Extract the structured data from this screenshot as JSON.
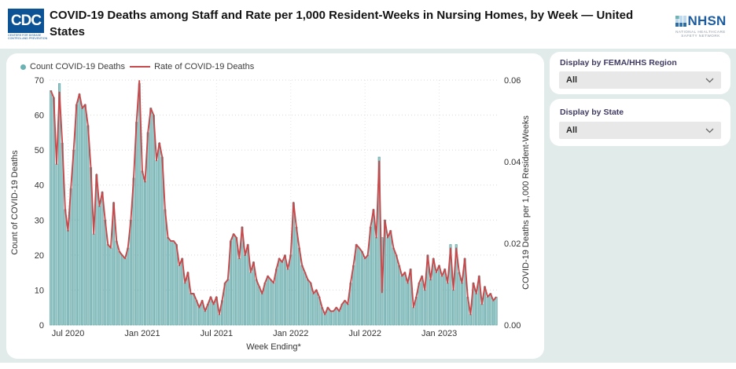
{
  "header": {
    "title": "COVID-19 Deaths among Staff and Rate per 1,000 Resident-Weeks in Nursing Homes, by Week — United States",
    "cdc_logo_text": "CDC",
    "cdc_logo_caption1": "CENTERS FOR DISEASE",
    "cdc_logo_caption2": "CONTROL AND PREVENTION",
    "nhsn_logo_text": "NHSN",
    "nhsn_caption1": "NATIONAL HEALTHCARE",
    "nhsn_caption2": "SAFETY NETWORK"
  },
  "filters": [
    {
      "label": "Display by FEMA/HHS Region",
      "value": "All"
    },
    {
      "label": "Display by State",
      "value": "All"
    }
  ],
  "legend": [
    {
      "label": "Count COVID-19 Deaths",
      "marker": "dot",
      "color": "#6cb2b2"
    },
    {
      "label": "Rate of COVID-19 Deaths",
      "marker": "line",
      "color": "#c64a4c"
    }
  ],
  "colors": {
    "bar_fill": "#9ccaca",
    "bar_stroke": "#5fa5a5",
    "line": "#c64a4c",
    "band_bg": "#e1ebea",
    "grid": "#d9d9d9",
    "filter_label": "#3f3b63"
  },
  "chart_data": {
    "type": "bar+line combo (weekly time series, May 2020 – May 2023)",
    "xlabel": "Week Ending*",
    "x_ticks": [
      {
        "label": "Jul 2020",
        "week": 6
      },
      {
        "label": "Jan 2021",
        "week": 32
      },
      {
        "label": "Jul 2021",
        "week": 58
      },
      {
        "label": "Jan 2022",
        "week": 84
      },
      {
        "label": "Jul 2022",
        "week": 110
      },
      {
        "label": "Jan 2023",
        "week": 136
      }
    ],
    "left_axis": {
      "label": "Count of COVID-19 Deaths",
      "range": [
        0,
        70
      ],
      "ticks": [
        0,
        10,
        20,
        30,
        40,
        50,
        60,
        70
      ]
    },
    "right_axis": {
      "label": "COVID-19 Deaths per 1,000 Resident-Weeks",
      "range": [
        0,
        0.06
      ],
      "ticks": [
        "0.00",
        "0.02",
        "0.04",
        "0.06"
      ]
    },
    "grid": "dotted horizontal at each left tick, dotted vertical at each x tick",
    "legend_position": "top-left",
    "series": [
      {
        "name": "Count COVID-19 Deaths",
        "type": "bar",
        "axis": "left",
        "values": [
          67,
          65,
          46,
          69,
          52,
          33,
          27,
          39,
          50,
          63,
          66,
          62,
          63,
          57,
          45,
          26,
          43,
          34,
          38,
          30,
          23,
          22,
          35,
          24,
          21,
          20,
          19,
          22,
          30,
          42,
          58,
          69,
          44,
          41,
          55,
          62,
          60,
          47,
          52,
          48,
          33,
          25,
          24,
          24,
          23,
          17,
          19,
          12,
          15,
          9,
          9,
          7,
          5,
          7,
          4,
          6,
          8,
          6,
          8,
          3,
          7,
          12,
          13,
          24,
          26,
          25,
          19,
          28,
          20,
          23,
          15,
          18,
          13,
          11,
          9,
          12,
          14,
          13,
          12,
          16,
          19,
          18,
          20,
          16,
          20,
          35,
          28,
          22,
          17,
          15,
          13,
          12,
          9,
          10,
          8,
          5,
          3,
          5,
          4,
          4,
          5,
          4,
          6,
          7,
          6,
          12,
          17,
          23,
          22,
          21,
          19,
          20,
          28,
          33,
          25,
          48,
          25,
          30,
          25,
          27,
          22,
          20,
          17,
          14,
          15,
          12,
          16,
          5,
          8,
          12,
          14,
          10,
          20,
          13,
          19,
          15,
          17,
          14,
          16,
          12,
          23,
          10,
          23,
          15,
          12,
          19,
          8,
          3,
          12,
          9,
          14,
          6,
          11,
          8,
          9,
          7,
          8
        ]
      },
      {
        "name": "Rate of COVID-19 Deaths",
        "type": "line",
        "axis": "right",
        "values": [
          0.0574,
          0.0557,
          0.0394,
          0.057,
          0.0446,
          0.0283,
          0.0231,
          0.0334,
          0.0429,
          0.054,
          0.0566,
          0.0531,
          0.054,
          0.0489,
          0.0386,
          0.0223,
          0.0369,
          0.0291,
          0.0326,
          0.0257,
          0.0197,
          0.0189,
          0.03,
          0.0206,
          0.018,
          0.0171,
          0.0163,
          0.0189,
          0.0257,
          0.036,
          0.0497,
          0.0598,
          0.0377,
          0.0351,
          0.0471,
          0.0531,
          0.0514,
          0.0403,
          0.0446,
          0.0411,
          0.0283,
          0.0214,
          0.0206,
          0.0206,
          0.0197,
          0.0146,
          0.0163,
          0.0103,
          0.0129,
          0.0077,
          0.0077,
          0.006,
          0.0043,
          0.006,
          0.0034,
          0.0051,
          0.0069,
          0.0051,
          0.0069,
          0.0026,
          0.006,
          0.0103,
          0.0111,
          0.0206,
          0.0223,
          0.0214,
          0.0163,
          0.024,
          0.0171,
          0.0197,
          0.0129,
          0.0154,
          0.0111,
          0.0094,
          0.0077,
          0.0103,
          0.012,
          0.0111,
          0.0103,
          0.0137,
          0.0163,
          0.0154,
          0.0171,
          0.0137,
          0.0171,
          0.03,
          0.024,
          0.0189,
          0.0146,
          0.0129,
          0.0111,
          0.0103,
          0.0077,
          0.0086,
          0.0069,
          0.0043,
          0.0026,
          0.0043,
          0.0034,
          0.0034,
          0.0043,
          0.0034,
          0.0051,
          0.006,
          0.0051,
          0.0103,
          0.0146,
          0.0197,
          0.0189,
          0.018,
          0.0163,
          0.0171,
          0.024,
          0.0283,
          0.0214,
          0.0401,
          0.008,
          0.0257,
          0.0214,
          0.0231,
          0.0189,
          0.0171,
          0.0146,
          0.012,
          0.0129,
          0.0103,
          0.0137,
          0.0043,
          0.0069,
          0.0103,
          0.012,
          0.0086,
          0.0171,
          0.0111,
          0.0163,
          0.0129,
          0.0146,
          0.012,
          0.0137,
          0.0103,
          0.0188,
          0.0086,
          0.0188,
          0.0129,
          0.0103,
          0.0163,
          0.0069,
          0.0026,
          0.0103,
          0.0077,
          0.012,
          0.0051,
          0.0094,
          0.0069,
          0.0077,
          0.006,
          0.0069
        ]
      }
    ]
  }
}
